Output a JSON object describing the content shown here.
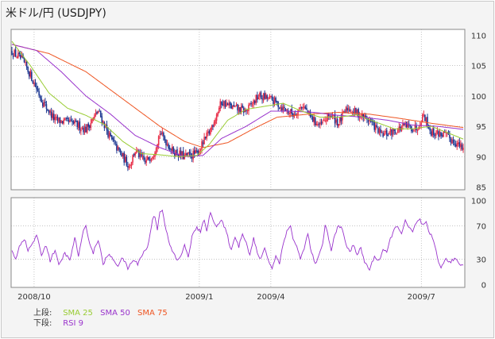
{
  "title": "米ドル/円 (USDJPY)",
  "colors": {
    "up_candle": "#e8304a",
    "down_candle": "#1f3a93",
    "sma25": "#99cc33",
    "sma50": "#9933cc",
    "sma75": "#ee5522",
    "rsi": "#9933cc",
    "grid": "#a0a0a0",
    "panel_bg": "#ffffff"
  },
  "legend": {
    "upper_label": "上段:",
    "lower_label": "下段:",
    "items_upper": [
      {
        "label": "SMA 25",
        "color": "#99cc33"
      },
      {
        "label": "SMA 50",
        "color": "#9933cc"
      },
      {
        "label": "SMA 75",
        "color": "#ee5522"
      }
    ],
    "items_lower": [
      {
        "label": "RSI 9",
        "color": "#9933cc"
      }
    ]
  },
  "chart_data": [
    {
      "type": "candlestick",
      "grid": true,
      "ylim": [
        85,
        110
      ],
      "y_ticks": [
        "110",
        "105",
        "100",
        "95",
        "90",
        "85"
      ],
      "x_ticks": [
        "2008/10",
        "2009/1",
        "2009/4",
        "2009/7"
      ],
      "price_anchors": [
        [
          0,
          107.3
        ],
        [
          8,
          106
        ],
        [
          15,
          103.5
        ],
        [
          25,
          99
        ],
        [
          35,
          96
        ],
        [
          50,
          95.5
        ],
        [
          60,
          94.5
        ],
        [
          70,
          97.5
        ],
        [
          80,
          93
        ],
        [
          88,
          90.5
        ],
        [
          95,
          88.5
        ],
        [
          100,
          91
        ],
        [
          108,
          89
        ],
        [
          115,
          90.7
        ],
        [
          120,
          94
        ],
        [
          130,
          91
        ],
        [
          140,
          90
        ],
        [
          150,
          90.5
        ],
        [
          160,
          94
        ],
        [
          170,
          99
        ],
        [
          180,
          98
        ],
        [
          190,
          97.5
        ],
        [
          200,
          100
        ],
        [
          210,
          99.5
        ],
        [
          220,
          98
        ],
        [
          228,
          97
        ],
        [
          236,
          98.5
        ],
        [
          242,
          96.5
        ],
        [
          250,
          95
        ],
        [
          258,
          97
        ],
        [
          265,
          95.5
        ],
        [
          272,
          98
        ],
        [
          280,
          97.2
        ],
        [
          290,
          96
        ],
        [
          300,
          93.5
        ],
        [
          310,
          94.2
        ],
        [
          318,
          95
        ],
        [
          328,
          94.7
        ],
        [
          334,
          97
        ],
        [
          340,
          94
        ],
        [
          350,
          93.7
        ],
        [
          360,
          92.3
        ],
        [
          366,
          91.2
        ]
      ],
      "sma25_anchors": [
        [
          0,
          109
        ],
        [
          15,
          105
        ],
        [
          30,
          100.5
        ],
        [
          45,
          98
        ],
        [
          60,
          96.8
        ],
        [
          75,
          95.3
        ],
        [
          90,
          92.5
        ],
        [
          105,
          90.5
        ],
        [
          120,
          90.3
        ],
        [
          135,
          90
        ],
        [
          150,
          90.2
        ],
        [
          160,
          92
        ],
        [
          175,
          96
        ],
        [
          190,
          97.8
        ],
        [
          205,
          98.3
        ],
        [
          220,
          98.8
        ],
        [
          235,
          97.5
        ],
        [
          250,
          96.5
        ],
        [
          265,
          96.5
        ],
        [
          280,
          96.9
        ],
        [
          295,
          95.7
        ],
        [
          310,
          94.6
        ],
        [
          325,
          94.6
        ],
        [
          340,
          95
        ],
        [
          355,
          93.8
        ],
        [
          366,
          92.9
        ]
      ],
      "sma50_anchors": [
        [
          0,
          108.5
        ],
        [
          20,
          107.5
        ],
        [
          40,
          104
        ],
        [
          60,
          100
        ],
        [
          80,
          97
        ],
        [
          100,
          93.5
        ],
        [
          120,
          91.5
        ],
        [
          140,
          90
        ],
        [
          155,
          90.2
        ],
        [
          170,
          93
        ],
        [
          190,
          95
        ],
        [
          210,
          97.5
        ],
        [
          225,
          97.5
        ],
        [
          245,
          97.3
        ],
        [
          265,
          96.8
        ],
        [
          285,
          96.5
        ],
        [
          305,
          96
        ],
        [
          325,
          95.2
        ],
        [
          345,
          95
        ],
        [
          366,
          94.5
        ]
      ],
      "sma75_anchors": [
        [
          0,
          108.5
        ],
        [
          30,
          107
        ],
        [
          60,
          104
        ],
        [
          90,
          99.5
        ],
        [
          120,
          95
        ],
        [
          140,
          92.5
        ],
        [
          155,
          91.5
        ],
        [
          175,
          92.3
        ],
        [
          195,
          94.5
        ],
        [
          215,
          96.5
        ],
        [
          240,
          97
        ],
        [
          265,
          97.3
        ],
        [
          290,
          97
        ],
        [
          315,
          96.3
        ],
        [
          340,
          95.5
        ],
        [
          366,
          94.8
        ]
      ]
    },
    {
      "type": "line",
      "grid": true,
      "ylim": [
        0,
        100
      ],
      "y_ticks": [
        "100",
        "70",
        "30",
        "0"
      ],
      "x_ticks": [
        "2008/10",
        "2009/1",
        "2009/4",
        "2009/7"
      ],
      "series": [
        {
          "name": "RSI 9",
          "color": "#9933cc",
          "anchors": [
            [
              0,
              40
            ],
            [
              3,
              30
            ],
            [
              6,
              46
            ],
            [
              10,
              55
            ],
            [
              13,
              40
            ],
            [
              17,
              50
            ],
            [
              20,
              58
            ],
            [
              24,
              36
            ],
            [
              28,
              47
            ],
            [
              31,
              28
            ],
            [
              35,
              42
            ],
            [
              38,
              22
            ],
            [
              43,
              38
            ],
            [
              47,
              28
            ],
            [
              51,
              56
            ],
            [
              54,
              34
            ],
            [
              58,
              63
            ],
            [
              60,
              72
            ],
            [
              63,
              48
            ],
            [
              66,
              38
            ],
            [
              70,
              54
            ],
            [
              74,
              24
            ],
            [
              78,
              36
            ],
            [
              82,
              30
            ],
            [
              86,
              23
            ],
            [
              90,
              32
            ],
            [
              94,
              19
            ],
            [
              98,
              29
            ],
            [
              102,
              25
            ],
            [
              106,
              37
            ],
            [
              110,
              44
            ],
            [
              114,
              77
            ],
            [
              116,
              82
            ],
            [
              118,
              66
            ],
            [
              120,
              87
            ],
            [
              122,
              90
            ],
            [
              124,
              70
            ],
            [
              126,
              60
            ],
            [
              128,
              46
            ],
            [
              131,
              38
            ],
            [
              134,
              28
            ],
            [
              137,
              35
            ],
            [
              140,
              46
            ],
            [
              143,
              33
            ],
            [
              146,
              57
            ],
            [
              150,
              68
            ],
            [
              153,
              62
            ],
            [
              156,
              78
            ],
            [
              158,
              65
            ],
            [
              161,
              85
            ],
            [
              163,
              78
            ],
            [
              166,
              70
            ],
            [
              170,
              76
            ],
            [
              174,
              62
            ],
            [
              178,
              40
            ],
            [
              181,
              58
            ],
            [
              184,
              45
            ],
            [
              187,
              62
            ],
            [
              190,
              50
            ],
            [
              193,
              35
            ],
            [
              196,
              55
            ],
            [
              199,
              37
            ],
            [
              202,
              30
            ],
            [
              205,
              45
            ],
            [
              208,
              28
            ],
            [
              211,
              20
            ],
            [
              214,
              34
            ],
            [
              217,
              25
            ],
            [
              220,
              50
            ],
            [
              223,
              63
            ],
            [
              226,
              70
            ],
            [
              228,
              55
            ],
            [
              231,
              45
            ],
            [
              234,
              30
            ],
            [
              237,
              44
            ],
            [
              240,
              60
            ],
            [
              243,
              38
            ],
            [
              246,
              24
            ],
            [
              249,
              34
            ],
            [
              252,
              47
            ],
            [
              254,
              72
            ],
            [
              256,
              60
            ],
            [
              259,
              40
            ],
            [
              262,
              60
            ],
            [
              265,
              72
            ],
            [
              268,
              64
            ],
            [
              271,
              48
            ],
            [
              274,
              38
            ],
            [
              277,
              48
            ],
            [
              280,
              36
            ],
            [
              283,
              43
            ],
            [
              286,
              27
            ],
            [
              290,
              18
            ],
            [
              294,
              33
            ],
            [
              298,
              29
            ],
            [
              301,
              42
            ],
            [
              304,
              37
            ],
            [
              307,
              55
            ],
            [
              310,
              65
            ],
            [
              313,
              70
            ],
            [
              316,
              61
            ],
            [
              319,
              75
            ],
            [
              322,
              68
            ],
            [
              325,
              62
            ],
            [
              328,
              74
            ],
            [
              331,
              77
            ],
            [
              333,
              70
            ],
            [
              336,
              73
            ],
            [
              338,
              62
            ],
            [
              340,
              58
            ],
            [
              342,
              52
            ],
            [
              344,
              40
            ],
            [
              346,
              28
            ],
            [
              348,
              20
            ],
            [
              350,
              24
            ],
            [
              352,
              33
            ],
            [
              354,
              25
            ],
            [
              356,
              27
            ],
            [
              358,
              30
            ],
            [
              360,
              31
            ],
            [
              362,
              26
            ],
            [
              364,
              24
            ],
            [
              366,
              23
            ]
          ]
        }
      ]
    }
  ]
}
